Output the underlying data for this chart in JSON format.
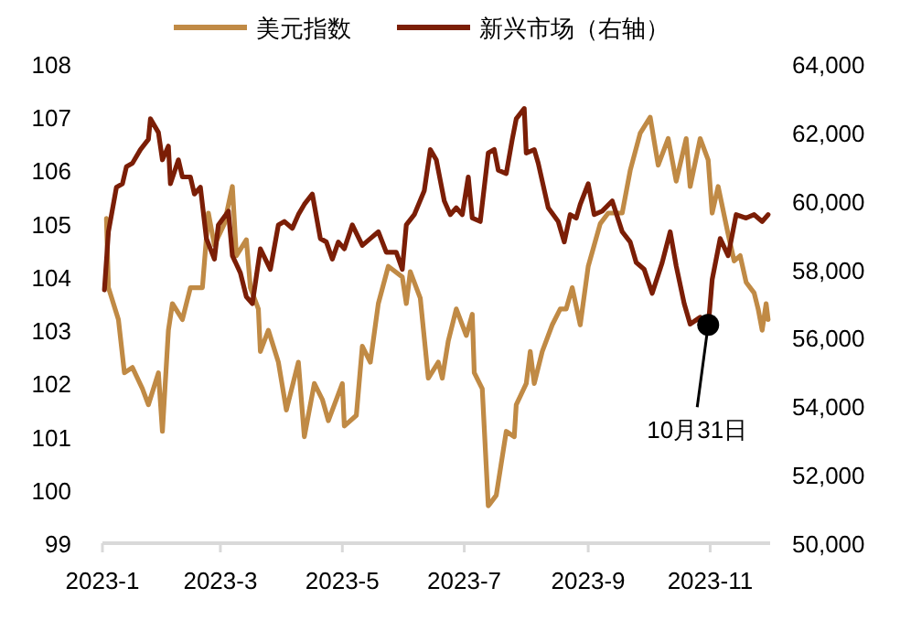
{
  "chart_data": {
    "type": "line",
    "legend": "top",
    "xlim": [
      "2023-01-01",
      "2023-12-01"
    ],
    "xticks": [
      {
        "value": "2023-01-01",
        "label": "2023-1"
      },
      {
        "value": "2023-03-01",
        "label": "2023-3"
      },
      {
        "value": "2023-05-01",
        "label": "2023-5"
      },
      {
        "value": "2023-07-01",
        "label": "2023-7"
      },
      {
        "value": "2023-09-01",
        "label": "2023-9"
      },
      {
        "value": "2023-11-01",
        "label": "2023-11"
      }
    ],
    "ylim": [
      99,
      108
    ],
    "yticks": [
      99,
      100,
      101,
      102,
      103,
      104,
      105,
      106,
      107,
      108
    ],
    "y2lim": [
      50000,
      64000
    ],
    "y2ticks": [
      {
        "value": 50000,
        "label": "50,000"
      },
      {
        "value": 52000,
        "label": "52,000"
      },
      {
        "value": 54000,
        "label": "54,000"
      },
      {
        "value": 56000,
        "label": "56,000"
      },
      {
        "value": 58000,
        "label": "58,000"
      },
      {
        "value": 60000,
        "label": "60,000"
      },
      {
        "value": 62000,
        "label": "62,000"
      },
      {
        "value": 64000,
        "label": "64,000"
      }
    ],
    "annotations": [
      {
        "text": "10月31日",
        "x": "2023-10-31",
        "y": 103.1
      }
    ],
    "series": [
      {
        "name": "美元指数",
        "color": "#c08a45",
        "x": [
          "2023-01-03",
          "2023-01-04",
          "2023-01-09",
          "2023-01-12",
          "2023-01-16",
          "2023-01-21",
          "2023-01-24",
          "2023-01-29",
          "2023-01-31",
          "2023-02-03",
          "2023-02-05",
          "2023-02-10",
          "2023-02-14",
          "2023-02-20",
          "2023-02-23",
          "2023-02-26",
          "2023-03-03",
          "2023-03-07",
          "2023-03-09",
          "2023-03-14",
          "2023-03-16",
          "2023-03-20",
          "2023-03-21",
          "2023-03-25",
          "2023-03-30",
          "2023-04-03",
          "2023-04-09",
          "2023-04-12",
          "2023-04-17",
          "2023-04-21",
          "2023-04-24",
          "2023-05-01",
          "2023-05-02",
          "2023-05-08",
          "2023-05-11",
          "2023-05-15",
          "2023-05-19",
          "2023-05-24",
          "2023-05-31",
          "2023-06-02",
          "2023-06-04",
          "2023-06-09",
          "2023-06-13",
          "2023-06-18",
          "2023-06-20",
          "2023-06-23",
          "2023-06-27",
          "2023-07-02",
          "2023-07-05",
          "2023-07-06",
          "2023-07-10",
          "2023-07-13",
          "2023-07-14",
          "2023-07-17",
          "2023-07-22",
          "2023-07-26",
          "2023-07-27",
          "2023-08-01",
          "2023-08-03",
          "2023-08-05",
          "2023-08-09",
          "2023-08-14",
          "2023-08-18",
          "2023-08-21",
          "2023-08-24",
          "2023-08-28",
          "2023-09-01",
          "2023-09-04",
          "2023-09-07",
          "2023-09-11",
          "2023-09-18",
          "2023-09-22",
          "2023-09-27",
          "2023-10-02",
          "2023-10-06",
          "2023-10-11",
          "2023-10-15",
          "2023-10-20",
          "2023-10-22",
          "2023-10-27",
          "2023-10-31",
          "2023-11-02",
          "2023-11-05",
          "2023-11-10",
          "2023-11-13",
          "2023-11-16",
          "2023-11-19",
          "2023-11-23",
          "2023-11-25",
          "2023-11-27",
          "2023-11-29",
          "2023-11-30"
        ],
        "values": [
          105.1,
          103.8,
          103.2,
          102.2,
          102.3,
          101.9,
          101.6,
          102.2,
          101.1,
          103.0,
          103.5,
          103.2,
          103.8,
          103.8,
          105.2,
          104.6,
          105.0,
          105.7,
          104.4,
          104.7,
          103.8,
          103.4,
          102.6,
          103.0,
          102.4,
          101.5,
          102.4,
          101.0,
          102.0,
          101.7,
          101.3,
          102.0,
          101.2,
          101.4,
          102.7,
          102.4,
          103.5,
          104.2,
          104.0,
          103.5,
          104.1,
          103.6,
          102.1,
          102.4,
          102.1,
          102.8,
          103.4,
          102.9,
          103.3,
          102.2,
          101.9,
          99.7,
          99.75,
          99.9,
          101.1,
          101.0,
          101.6,
          102.0,
          102.6,
          102.0,
          102.6,
          103.1,
          103.4,
          103.4,
          103.8,
          103.1,
          104.2,
          104.6,
          105.0,
          105.2,
          105.2,
          106.0,
          106.7,
          107.0,
          106.1,
          106.6,
          105.8,
          106.6,
          105.7,
          106.6,
          106.2,
          105.2,
          105.7,
          104.8,
          104.3,
          104.4,
          103.9,
          103.7,
          103.4,
          103.0,
          103.5,
          103.2
        ]
      },
      {
        "name": "新兴市场（右轴）",
        "color": "#7b1e06",
        "axis": "y2",
        "x": [
          "2023-01-02",
          "2023-01-04",
          "2023-01-08",
          "2023-01-11",
          "2023-01-13",
          "2023-01-16",
          "2023-01-20",
          "2023-01-24",
          "2023-01-25",
          "2023-01-29",
          "2023-01-31",
          "2023-02-03",
          "2023-02-04",
          "2023-02-08",
          "2023-02-10",
          "2023-02-14",
          "2023-02-16",
          "2023-02-19",
          "2023-02-22",
          "2023-02-26",
          "2023-02-28",
          "2023-03-05",
          "2023-03-07",
          "2023-03-11",
          "2023-03-14",
          "2023-03-17",
          "2023-03-21",
          "2023-03-26",
          "2023-03-30",
          "2023-04-02",
          "2023-04-06",
          "2023-04-09",
          "2023-04-12",
          "2023-04-16",
          "2023-04-20",
          "2023-04-23",
          "2023-04-26",
          "2023-04-29",
          "2023-05-02",
          "2023-05-06",
          "2023-05-11",
          "2023-05-15",
          "2023-05-19",
          "2023-05-23",
          "2023-05-28",
          "2023-05-31",
          "2023-06-02",
          "2023-06-06",
          "2023-06-11",
          "2023-06-14",
          "2023-06-17",
          "2023-06-21",
          "2023-06-24",
          "2023-06-27",
          "2023-06-30",
          "2023-07-03",
          "2023-07-05",
          "2023-07-09",
          "2023-07-13",
          "2023-07-16",
          "2023-07-18",
          "2023-07-22",
          "2023-07-25",
          "2023-07-27",
          "2023-07-31",
          "2023-08-01",
          "2023-08-05",
          "2023-08-07",
          "2023-08-12",
          "2023-08-17",
          "2023-08-20",
          "2023-08-23",
          "2023-08-26",
          "2023-08-28",
          "2023-09-01",
          "2023-09-04",
          "2023-09-08",
          "2023-09-13",
          "2023-09-18",
          "2023-09-22",
          "2023-09-25",
          "2023-09-29",
          "2023-10-03",
          "2023-10-08",
          "2023-10-12",
          "2023-10-15",
          "2023-10-19",
          "2023-10-22",
          "2023-10-27",
          "2023-10-31",
          "2023-11-02",
          "2023-11-06",
          "2023-11-10",
          "2023-11-14",
          "2023-11-19",
          "2023-11-23",
          "2023-11-27",
          "2023-11-30"
        ],
        "values": [
          57400,
          59100,
          60400,
          60500,
          61000,
          61100,
          61500,
          61800,
          62400,
          62000,
          61200,
          61600,
          60500,
          61200,
          60700,
          60700,
          60200,
          60400,
          58900,
          58300,
          59300,
          59700,
          58400,
          57900,
          57200,
          57000,
          58600,
          58000,
          59300,
          59400,
          59200,
          59600,
          59900,
          60200,
          58900,
          58800,
          58300,
          58800,
          58600,
          59300,
          58700,
          58900,
          59100,
          58500,
          58500,
          58000,
          59300,
          59600,
          60300,
          61500,
          61200,
          60000,
          59600,
          59800,
          59600,
          60700,
          59500,
          59400,
          61400,
          61500,
          60900,
          60800,
          61800,
          62400,
          62700,
          61400,
          61500,
          61100,
          59800,
          59400,
          58800,
          59600,
          59500,
          59900,
          60500,
          59600,
          59700,
          60000,
          59100,
          58800,
          58200,
          58000,
          57300,
          58200,
          59100,
          58100,
          57000,
          56400,
          56600,
          56300,
          57700,
          58900,
          58400,
          59600,
          59500,
          59600,
          59400,
          59600
        ]
      }
    ]
  }
}
